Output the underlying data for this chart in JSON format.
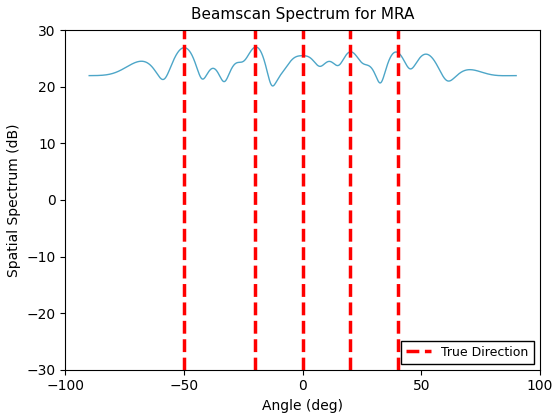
{
  "title": "Beamscan Spectrum for MRA",
  "xlabel": "Angle (deg)",
  "ylabel": "Spatial Spectrum (dB)",
  "xlim": [
    -100,
    100
  ],
  "ylim": [
    -30,
    30
  ],
  "xticks": [
    -100,
    -50,
    0,
    50,
    100
  ],
  "yticks": [
    -30,
    -20,
    -10,
    0,
    10,
    20,
    30
  ],
  "true_directions": [
    -50,
    -20,
    0,
    20,
    40
  ],
  "line_color": "#4da6c8",
  "vline_color": "red",
  "legend_label": "True Direction",
  "source_angles_deg": [
    -50,
    -20,
    0,
    20,
    40
  ],
  "background_color": "#ffffff",
  "title_fontsize": 11,
  "label_fontsize": 10
}
